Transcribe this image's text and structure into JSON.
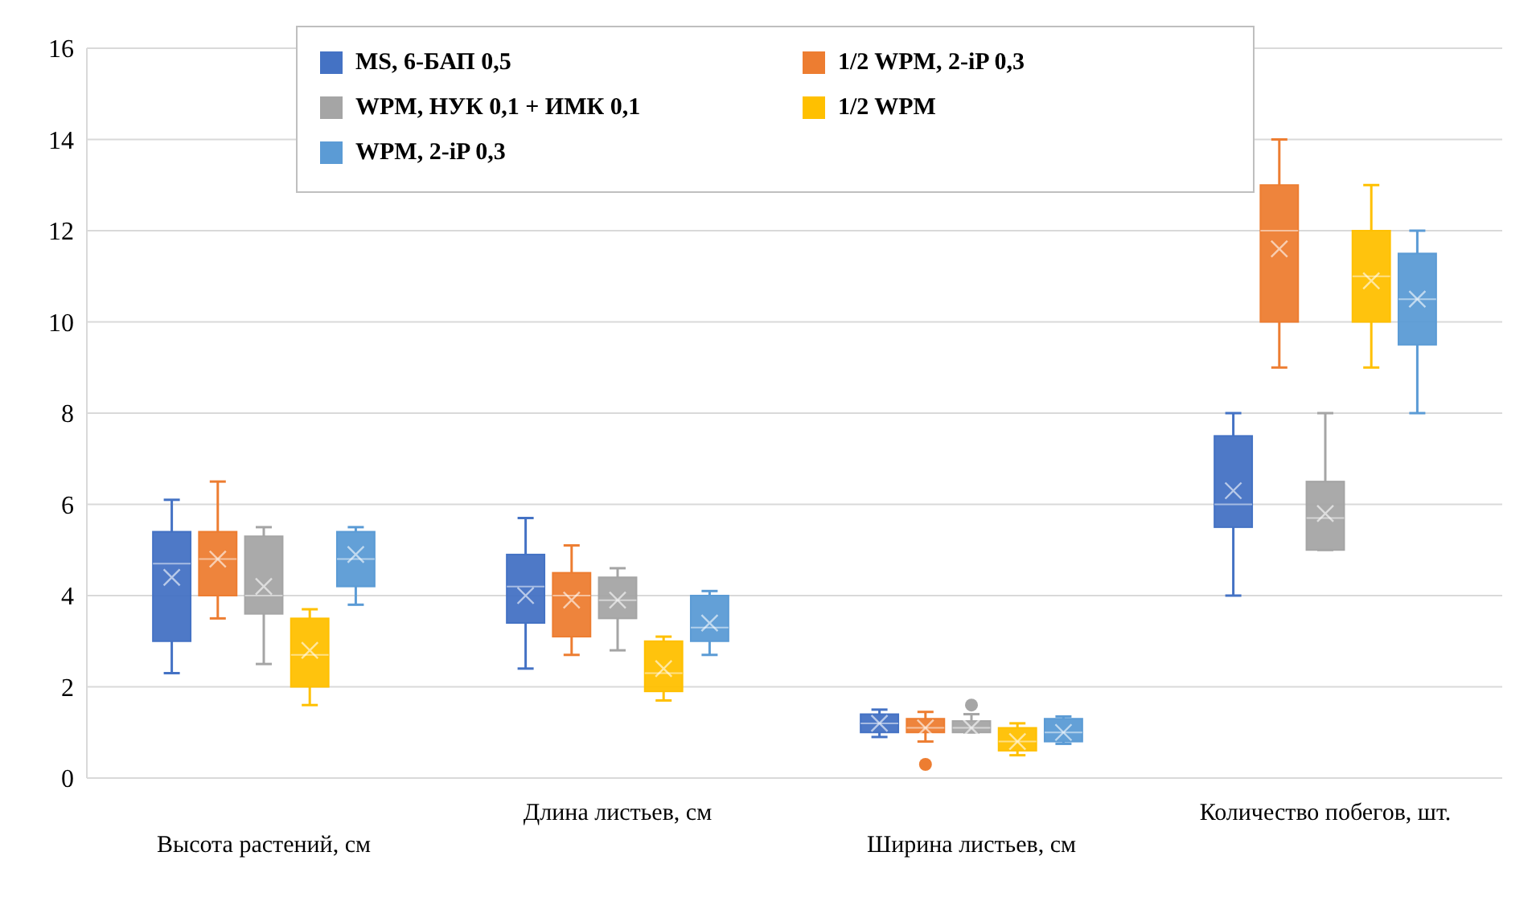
{
  "chart_data": {
    "type": "box",
    "categories": [
      "Высота растений, см",
      "Длина листьев, см",
      "Ширина листьев, см",
      "Количество побегов, шт."
    ],
    "series": [
      {
        "name": "MS, 6-БАП 0,5",
        "color": "#4472c4",
        "boxes": [
          {
            "low": 2.3,
            "q1": 3.0,
            "median": 4.7,
            "q3": 5.4,
            "high": 6.1,
            "mean": 4.4
          },
          {
            "low": 2.4,
            "q1": 3.4,
            "median": 4.2,
            "q3": 4.9,
            "high": 5.7,
            "mean": 4.0
          },
          {
            "low": 0.9,
            "q1": 1.0,
            "median": 1.2,
            "q3": 1.4,
            "high": 1.5,
            "mean": 1.2
          },
          {
            "low": 4,
            "q1": 5.5,
            "median": 6,
            "q3": 7.5,
            "high": 8,
            "mean": 6.3
          }
        ]
      },
      {
        "name": "1/2 WPM, 2-iP 0,3",
        "color": "#ed7d31",
        "boxes": [
          {
            "low": 3.5,
            "q1": 4.0,
            "median": 4.8,
            "q3": 5.4,
            "high": 6.5,
            "mean": 4.8
          },
          {
            "low": 2.7,
            "q1": 3.1,
            "median": 4.0,
            "q3": 4.5,
            "high": 5.1,
            "mean": 3.9
          },
          {
            "low": 0.8,
            "q1": 1.0,
            "median": 1.1,
            "q3": 1.3,
            "high": 1.45,
            "mean": 1.1,
            "outliers": [
              0.3
            ]
          },
          {
            "low": 9,
            "q1": 10,
            "median": 12,
            "q3": 13,
            "high": 14,
            "mean": 11.6
          }
        ]
      },
      {
        "name": "WPM, НУК 0,1 + ИМК 0,1",
        "color": "#a5a5a5",
        "boxes": [
          {
            "low": 2.5,
            "q1": 3.6,
            "median": 4.0,
            "q3": 5.3,
            "high": 5.5,
            "mean": 4.2
          },
          {
            "low": 2.8,
            "q1": 3.5,
            "median": 3.9,
            "q3": 4.4,
            "high": 4.6,
            "mean": 3.9
          },
          {
            "low": 1.0,
            "q1": 1.0,
            "median": 1.1,
            "q3": 1.25,
            "high": 1.4,
            "mean": 1.1,
            "outliers": [
              1.6
            ]
          },
          {
            "low": 5,
            "q1": 5,
            "median": 5.7,
            "q3": 6.5,
            "high": 8,
            "mean": 5.8
          }
        ]
      },
      {
        "name": "1/2 WPM",
        "color": "#ffc000",
        "boxes": [
          {
            "low": 1.6,
            "q1": 2.0,
            "median": 2.7,
            "q3": 3.5,
            "high": 3.7,
            "mean": 2.8
          },
          {
            "low": 1.7,
            "q1": 1.9,
            "median": 2.3,
            "q3": 3.0,
            "high": 3.1,
            "mean": 2.4
          },
          {
            "low": 0.5,
            "q1": 0.6,
            "median": 0.8,
            "q3": 1.1,
            "high": 1.2,
            "mean": 0.8
          },
          {
            "low": 9,
            "q1": 10,
            "median": 11,
            "q3": 12,
            "high": 13,
            "mean": 10.9
          }
        ]
      },
      {
        "name": "WPM, 2-iP 0,3",
        "color": "#5b9bd5",
        "boxes": [
          {
            "low": 3.8,
            "q1": 4.2,
            "median": 4.8,
            "q3": 5.4,
            "high": 5.5,
            "mean": 4.9
          },
          {
            "low": 2.7,
            "q1": 3.0,
            "median": 3.3,
            "q3": 4.0,
            "high": 4.1,
            "mean": 3.4
          },
          {
            "low": 0.75,
            "q1": 0.8,
            "median": 1.0,
            "q3": 1.3,
            "high": 1.35,
            "mean": 1.0
          },
          {
            "low": 8,
            "q1": 9.5,
            "median": 10.5,
            "q3": 11.5,
            "high": 12,
            "mean": 10.5
          }
        ]
      }
    ],
    "ylim": [
      0,
      16
    ],
    "yticks": [
      0,
      2,
      4,
      6,
      8,
      10,
      12,
      14,
      16
    ],
    "grid": "y",
    "legend": "top"
  }
}
